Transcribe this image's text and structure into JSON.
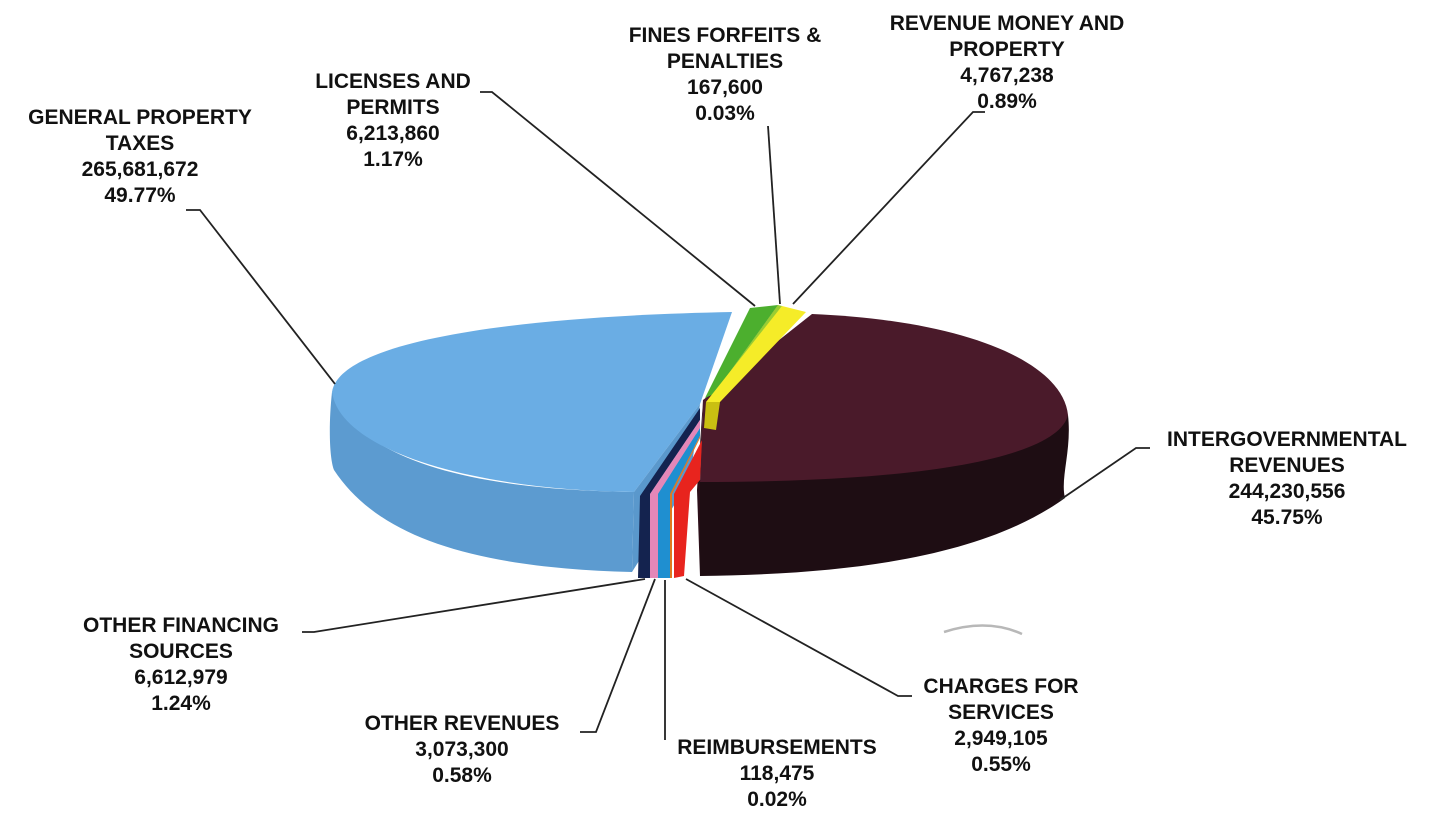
{
  "chart_data": {
    "type": "pie",
    "style": "3d-exploded",
    "slices": [
      {
        "key": "general-property-taxes",
        "label": [
          "GENERAL PROPERTY",
          "TAXES"
        ],
        "value_text": "265,681,672",
        "value": 265681672,
        "percent_text": "49.77%",
        "percent": 49.77,
        "color": "#6aade4",
        "side_color": "#5c9bd0"
      },
      {
        "key": "licenses-and-permits",
        "label": [
          "LICENSES AND",
          "PERMITS"
        ],
        "value_text": "6,213,860",
        "value": 6213860,
        "percent_text": "1.17%",
        "percent": 1.17,
        "color": "#4caf2e",
        "side_color": "#3b8f22"
      },
      {
        "key": "fines-forfeits-penalties",
        "label": [
          "FINES FORFEITS &",
          "PENALTIES"
        ],
        "value_text": "167,600",
        "value": 167600,
        "percent_text": "0.03%",
        "percent": 0.03,
        "color": "#9acd32",
        "side_color": "#7fae25"
      },
      {
        "key": "revenue-money-and-property",
        "label": [
          "REVENUE MONEY AND",
          "PROPERTY"
        ],
        "value_text": "4,767,238",
        "value": 4767238,
        "percent_text": "0.89%",
        "percent": 0.89,
        "color": "#f5ec28",
        "side_color": "#c9bf12"
      },
      {
        "key": "intergovernmental-revenues",
        "label": [
          "INTERGOVERNMENTAL",
          "REVENUES"
        ],
        "value_text": "244,230,556",
        "value": 244230556,
        "percent_text": "45.75%",
        "percent": 45.75,
        "color": "#4a1a2a",
        "side_color": "#1e0d13"
      },
      {
        "key": "charges-for-services",
        "label": [
          "CHARGES FOR",
          "SERVICES"
        ],
        "value_text": "2,949,105",
        "value": 2949105,
        "percent_text": "0.55%",
        "percent": 0.55,
        "color": "#e8241e",
        "side_color": "#c21a15"
      },
      {
        "key": "reimbursements",
        "label": [
          "REIMBURSEMENTS"
        ],
        "value_text": "118,475",
        "value": 118475,
        "percent_text": "0.02%",
        "percent": 0.02,
        "color": "#e07a1f",
        "side_color": "#b8621a"
      },
      {
        "key": "other-revenues",
        "label": [
          "OTHER REVENUES"
        ],
        "value_text": "3,073,300",
        "value": 3073300,
        "percent_text": "0.58%",
        "percent": 0.58,
        "color": "#1f8fd0",
        "side_color": "#1a72a8"
      },
      {
        "key": "other-financing-sources",
        "label": [
          "OTHER FINANCING",
          "SOURCES"
        ],
        "value_text": "6,612,979",
        "value": 6612979,
        "percent_text": "1.24%",
        "percent": 1.24,
        "color": "#e487b8",
        "side_color": "#c0679a"
      }
    ],
    "small_slice_side_colors": {
      "navy": "#14234f"
    },
    "legend": "none",
    "title": ""
  }
}
